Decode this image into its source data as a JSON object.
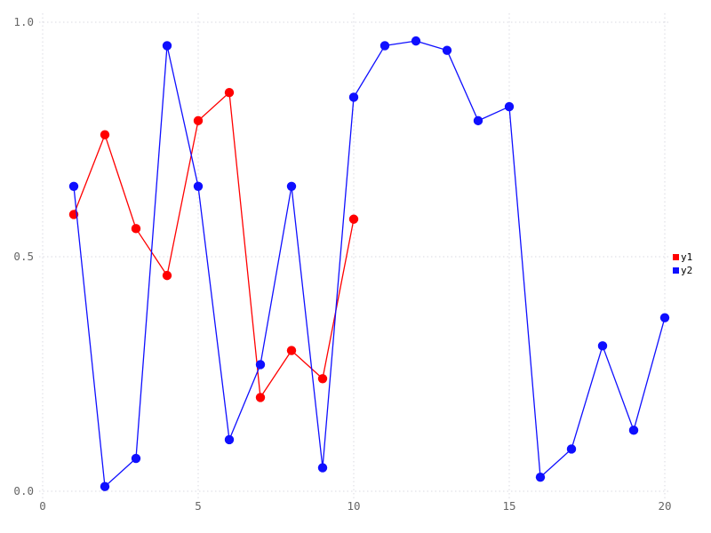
{
  "chart_data": {
    "type": "line",
    "title": "",
    "xlabel": "",
    "ylabel": "",
    "xlim": [
      0,
      20
    ],
    "ylim": [
      0.0,
      1.0
    ],
    "xticks": [
      0,
      5,
      10,
      15,
      20
    ],
    "xtick_labels": [
      "0",
      "5",
      "10",
      "15",
      "20"
    ],
    "yticks": [
      0.0,
      0.5,
      1.0
    ],
    "ytick_labels": [
      "0.0",
      "0.5",
      "1.0"
    ],
    "grid": true,
    "grid_style": "dotted",
    "legend_position": "right",
    "marker": "circle",
    "series": [
      {
        "name": "y1",
        "color": "#ff0000",
        "x": [
          1,
          2,
          3,
          4,
          5,
          6,
          7,
          8,
          9,
          10
        ],
        "values": [
          0.59,
          0.76,
          0.56,
          0.46,
          0.79,
          0.85,
          0.2,
          0.3,
          0.24,
          0.58
        ]
      },
      {
        "name": "y2",
        "color": "#0f0fff",
        "x": [
          1,
          2,
          3,
          4,
          5,
          6,
          7,
          8,
          9,
          10,
          11,
          12,
          13,
          14,
          15,
          16,
          17,
          18,
          19,
          20
        ],
        "values": [
          0.65,
          0.01,
          0.07,
          0.95,
          0.65,
          0.11,
          0.27,
          0.65,
          0.05,
          0.84,
          0.95,
          0.96,
          0.94,
          0.79,
          0.82,
          0.03,
          0.09,
          0.31,
          0.13,
          0.37
        ]
      }
    ]
  },
  "colors": {
    "background": "#ffffff",
    "grid": "#d9d9e1",
    "tick_label": "#666666",
    "legend_text": "#000000"
  }
}
